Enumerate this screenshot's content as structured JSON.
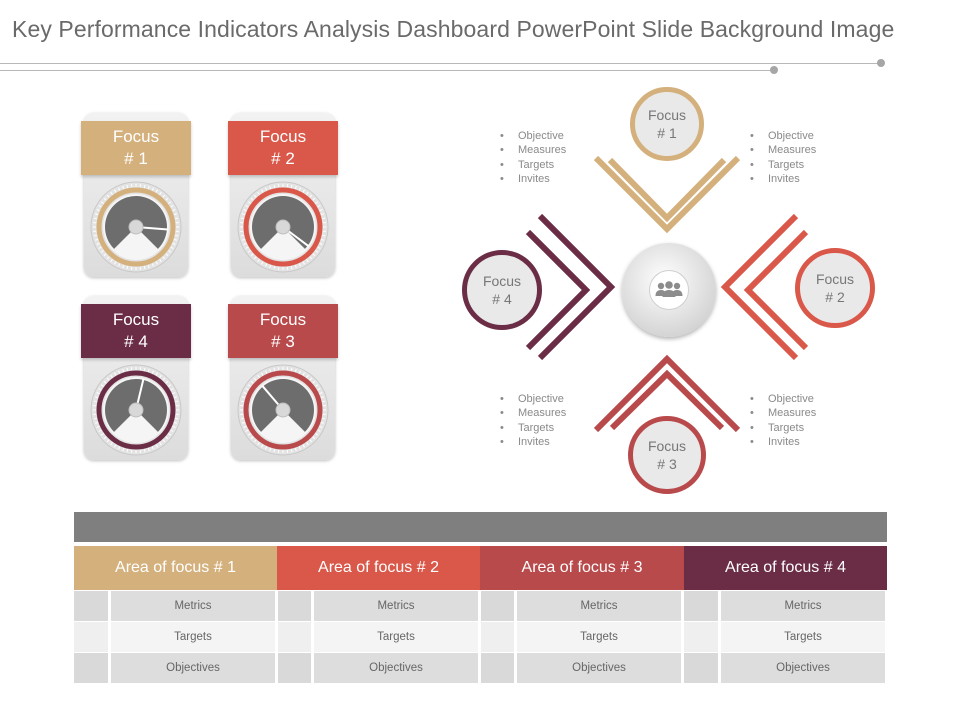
{
  "title": "Key Performance Indicators Analysis Dashboard PowerPoint Slide Background Image",
  "colors": {
    "focus1": "#d4b07c",
    "focus2": "#d9584a",
    "focus3": "#b94a4c",
    "focus4": "#6b2d45",
    "table_bar": "#7f7f7f"
  },
  "gauges": [
    {
      "line1": "Focus",
      "line2": "# 1",
      "color": "#d4b07c",
      "level": 0.85
    },
    {
      "line1": "Focus",
      "line2": "# 2",
      "color": "#d9584a",
      "level": 0.97
    },
    {
      "line1": "Focus",
      "line2": "# 4",
      "color": "#6b2d45",
      "level": 0.55
    },
    {
      "line1": "Focus",
      "line2": "# 3",
      "color": "#b94a4c",
      "level": 0.35
    }
  ],
  "diagram": {
    "center_icon": "team-icon",
    "focus": [
      {
        "line1": "Focus",
        "line2": "# 1",
        "color": "#d4b07c"
      },
      {
        "line1": "Focus",
        "line2": "# 2",
        "color": "#d9584a"
      },
      {
        "line1": "Focus",
        "line2": "# 3",
        "color": "#b94a4c"
      },
      {
        "line1": "Focus",
        "line2": "# 4",
        "color": "#6b2d45"
      }
    ],
    "bullet_lists": [
      [
        "Objective",
        "Measures",
        "Targets",
        "Invites"
      ],
      [
        "Objective",
        "Measures",
        "Targets",
        "Invites"
      ],
      [
        "Objective",
        "Measures",
        "Targets",
        "Invites"
      ],
      [
        "Objective",
        "Measures",
        "Targets",
        "Invites"
      ]
    ]
  },
  "table": {
    "areas": [
      {
        "label": "Area of focus # 1",
        "color": "#d4b07c"
      },
      {
        "label": "Area of focus # 2",
        "color": "#d9584a"
      },
      {
        "label": "Area of focus # 3",
        "color": "#b94a4c"
      },
      {
        "label": "Area of focus # 4",
        "color": "#6b2d45"
      }
    ],
    "rows": [
      "Metrics",
      "Targets",
      "Objectives"
    ]
  }
}
